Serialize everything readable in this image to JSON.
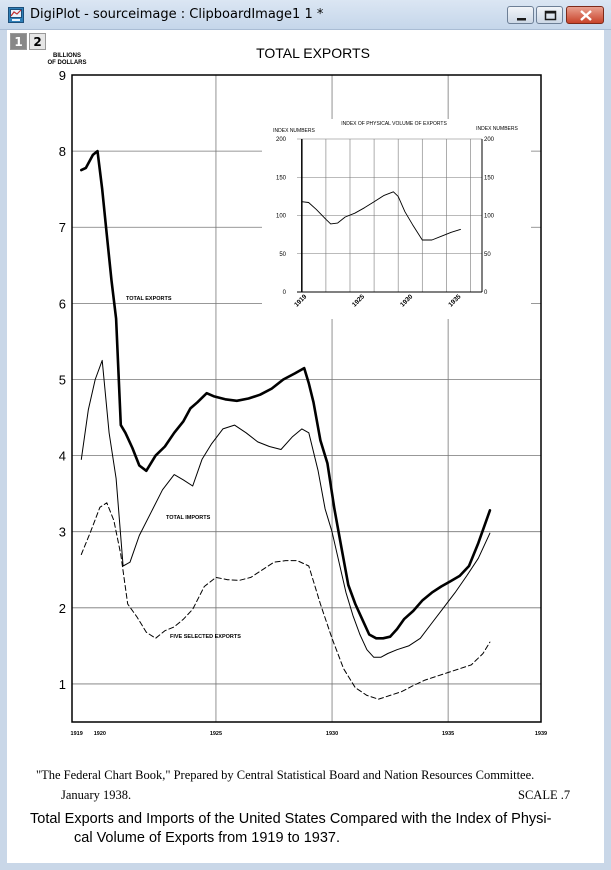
{
  "window": {
    "title": "DigiPlot - sourceimage : ClipboardImage1 1 *",
    "layer_tabs": [
      "1",
      "2"
    ]
  },
  "chart_data": [
    {
      "type": "line",
      "title": "TOTAL EXPORTS",
      "ylabel_line1": "BILLIONS",
      "ylabel_line2": "OF DOLLARS",
      "xlim": [
        1918.8,
        1939
      ],
      "ylim": [
        0.5,
        9
      ],
      "y_ticks": [
        "1",
        "2",
        "3",
        "4",
        "5",
        "6",
        "7",
        "8",
        "9"
      ],
      "x_tick_labels": [
        {
          "x": 1919,
          "label": "1919"
        },
        {
          "x": 1920,
          "label": "1920"
        },
        {
          "x": 1925,
          "label": "1925"
        },
        {
          "x": 1930,
          "label": "1930"
        },
        {
          "x": 1935,
          "label": "1935"
        },
        {
          "x": 1939,
          "label": "1939"
        }
      ],
      "grid": true,
      "series": [
        {
          "name": "TOTAL EXPORTS",
          "style": "thick",
          "x": [
            1919.2,
            1919.4,
            1919.7,
            1919.9,
            1920.1,
            1920.3,
            1920.5,
            1920.7,
            1920.9,
            1921.1,
            1921.4,
            1921.7,
            1922.0,
            1922.4,
            1922.8,
            1923.2,
            1923.6,
            1923.9,
            1924.2,
            1924.6,
            1924.9,
            1925.4,
            1925.9,
            1926.4,
            1926.9,
            1927.4,
            1927.9,
            1928.4,
            1928.8,
            1929.0,
            1929.2,
            1929.5,
            1929.8,
            1930.1,
            1930.4,
            1930.7,
            1931.0,
            1931.3,
            1931.6,
            1931.9,
            1932.2,
            1932.5,
            1932.8,
            1933.1,
            1933.5,
            1933.9,
            1934.3,
            1934.7,
            1935.1,
            1935.5,
            1935.9,
            1936.3,
            1936.8
          ],
          "y": [
            7.75,
            7.78,
            7.95,
            8.0,
            7.5,
            6.9,
            6.3,
            5.8,
            4.4,
            4.3,
            4.1,
            3.87,
            3.8,
            4.0,
            4.12,
            4.3,
            4.45,
            4.62,
            4.7,
            4.82,
            4.78,
            4.74,
            4.72,
            4.75,
            4.8,
            4.88,
            5.0,
            5.08,
            5.15,
            4.95,
            4.7,
            4.2,
            3.9,
            3.3,
            2.8,
            2.3,
            2.05,
            1.85,
            1.65,
            1.6,
            1.6,
            1.62,
            1.72,
            1.85,
            1.96,
            2.1,
            2.2,
            2.28,
            2.35,
            2.42,
            2.55,
            2.85,
            3.28
          ]
        },
        {
          "name": "TOTAL IMPORTS",
          "style": "thin",
          "x": [
            1919.2,
            1919.5,
            1919.8,
            1920.1,
            1920.4,
            1920.7,
            1921.0,
            1921.3,
            1921.7,
            1922.2,
            1922.7,
            1923.2,
            1923.6,
            1924.0,
            1924.4,
            1924.8,
            1925.3,
            1925.8,
            1926.3,
            1926.8,
            1927.3,
            1927.8,
            1928.3,
            1928.7,
            1929.0,
            1929.4,
            1929.7,
            1930.0,
            1930.3,
            1930.6,
            1930.9,
            1931.2,
            1931.5,
            1931.8,
            1932.1,
            1932.4,
            1932.8,
            1933.3,
            1933.8,
            1934.3,
            1934.8,
            1935.3,
            1935.8,
            1936.3,
            1936.8
          ],
          "y": [
            3.95,
            4.6,
            5.0,
            5.25,
            4.3,
            3.7,
            2.55,
            2.6,
            2.95,
            3.25,
            3.55,
            3.75,
            3.68,
            3.6,
            3.95,
            4.15,
            4.35,
            4.4,
            4.3,
            4.18,
            4.12,
            4.08,
            4.25,
            4.35,
            4.3,
            3.8,
            3.3,
            3.0,
            2.6,
            2.2,
            1.9,
            1.65,
            1.45,
            1.35,
            1.35,
            1.4,
            1.45,
            1.5,
            1.6,
            1.8,
            2.0,
            2.2,
            2.42,
            2.65,
            2.98
          ]
        },
        {
          "name": "FIVE SELECTED EXPORTS",
          "style": "dashed",
          "x": [
            1919.2,
            1919.6,
            1920.0,
            1920.3,
            1920.6,
            1920.9,
            1921.2,
            1921.6,
            1922.0,
            1922.4,
            1922.8,
            1923.2,
            1923.6,
            1924.0,
            1924.5,
            1925.0,
            1925.5,
            1926.0,
            1926.5,
            1927.0,
            1927.5,
            1928.0,
            1928.5,
            1929.0,
            1929.5,
            1930.0,
            1930.5,
            1931.0,
            1931.5,
            1932.0,
            1932.5,
            1933.0,
            1933.5,
            1934.0,
            1934.5,
            1935.0,
            1935.5,
            1936.0,
            1936.5,
            1936.8
          ],
          "y": [
            2.7,
            3.0,
            3.32,
            3.38,
            3.15,
            2.7,
            2.05,
            1.88,
            1.68,
            1.6,
            1.7,
            1.75,
            1.85,
            1.98,
            2.28,
            2.4,
            2.37,
            2.36,
            2.4,
            2.5,
            2.6,
            2.62,
            2.62,
            2.55,
            2.05,
            1.6,
            1.2,
            0.95,
            0.85,
            0.8,
            0.85,
            0.9,
            0.98,
            1.05,
            1.1,
            1.15,
            1.2,
            1.25,
            1.4,
            1.55
          ]
        }
      ]
    },
    {
      "type": "line",
      "title": "INDEX OF PHYSICAL VOLUME OF EXPORTS",
      "ylabel_left": "INDEX  NUMBERS",
      "ylabel_right": "INDEX  NUMBERS",
      "xlim": [
        1918.5,
        1937.7
      ],
      "ylim": [
        0,
        200
      ],
      "y_ticks": [
        "0",
        "50",
        "100",
        "150",
        "200"
      ],
      "x_tick_labels": [
        {
          "x": 1919,
          "label": "1919"
        },
        {
          "x": 1925,
          "label": "1925"
        },
        {
          "x": 1930,
          "label": "1930"
        },
        {
          "x": 1935,
          "label": "1935"
        }
      ],
      "grid": true,
      "series": [
        {
          "x": [
            1919,
            1919.7,
            1920.5,
            1921.5,
            1922,
            1922.7,
            1923.5,
            1924.5,
            1925.5,
            1926.5,
            1927.5,
            1928.5,
            1929,
            1929.7,
            1930.5,
            1931.5,
            1932.5,
            1933.5,
            1934.5,
            1935.5
          ],
          "y": [
            118,
            117,
            108,
            95,
            89,
            90,
            98,
            103,
            110,
            118,
            126,
            131,
            125,
            105,
            88,
            68,
            68,
            73,
            78,
            82
          ]
        }
      ]
    }
  ],
  "caption": {
    "line1": "\"The Federal Chart Book,\" Prepared by Central Statistical Board and Nation Resources Committee.",
    "line2_left": "January 1938.",
    "line2_right": "SCALE .7"
  },
  "subtitle": {
    "line1": "Total Exports and Imports of the United States Compared with the Index of Physi-",
    "line2": "cal Volume of Exports from 1919 to 1937."
  }
}
